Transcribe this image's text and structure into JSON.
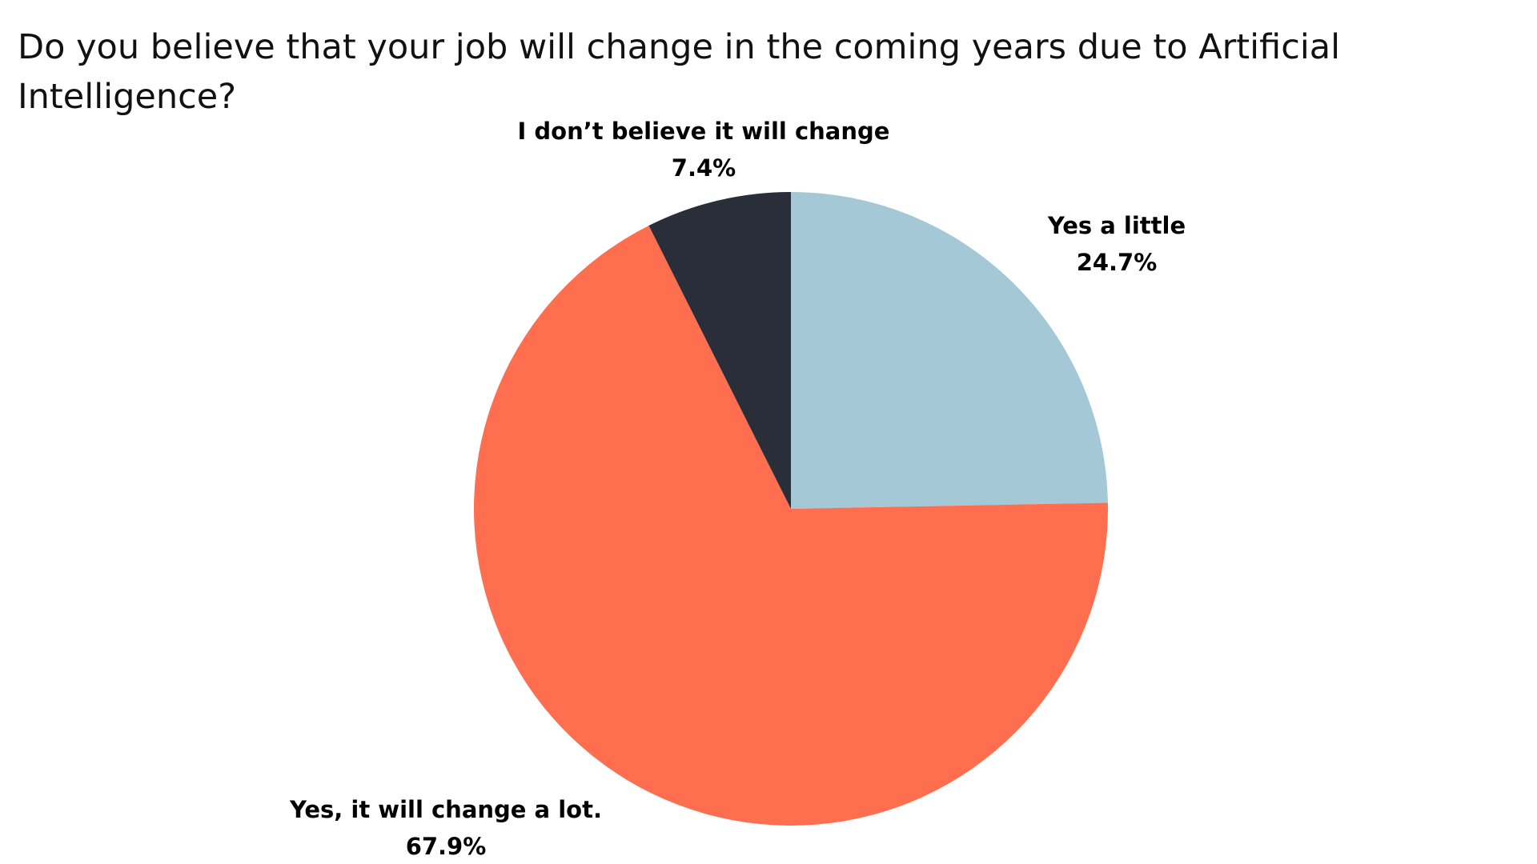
{
  "chart_data": {
    "type": "pie",
    "title": "Do you believe that your job will change in the coming years due to Artificial Intelligence?",
    "slices": [
      {
        "label": "Yes a little",
        "value": 24.7,
        "value_label": "24.7%",
        "color": "#A4C8D5"
      },
      {
        "label": "Yes, it will change a lot.",
        "value": 67.9,
        "value_label": "67.9%",
        "color": "#FF6E4F"
      },
      {
        "label": "I don’t believe it will change",
        "value": 7.4,
        "value_label": "7.4%",
        "color": "#2A2E38"
      }
    ],
    "start_angle": "12 o'clock",
    "direction": "clockwise",
    "legend": "none"
  }
}
